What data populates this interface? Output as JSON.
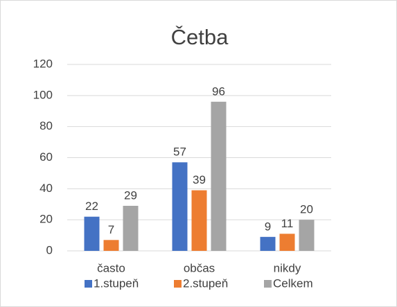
{
  "chart_data": {
    "type": "bar",
    "title": "Četba",
    "categories": [
      "často",
      "občas",
      "nikdy"
    ],
    "series": [
      {
        "name": "1.stupeň",
        "color": "#4472c4",
        "values": [
          22,
          57,
          9
        ]
      },
      {
        "name": "2.stupeň",
        "color": "#ed7d31",
        "values": [
          7,
          39,
          11
        ]
      },
      {
        "name": "Celkem",
        "color": "#a5a5a5",
        "values": [
          29,
          96,
          20
        ]
      }
    ],
    "ylim": [
      0,
      120
    ],
    "yticks": [
      0,
      20,
      40,
      60,
      80,
      100,
      120
    ],
    "grid": true,
    "legend": "bottom"
  }
}
